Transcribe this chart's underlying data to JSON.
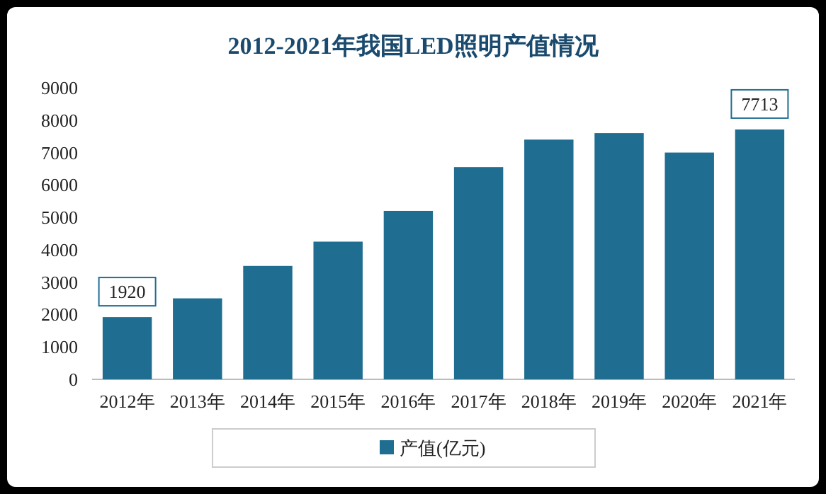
{
  "chart_data": {
    "type": "bar",
    "title": "2012-2021年我国LED照明产值情况",
    "categories": [
      "2012年",
      "2013年",
      "2014年",
      "2015年",
      "2016年",
      "2017年",
      "2018年",
      "2019年",
      "2020年",
      "2021年"
    ],
    "series": [
      {
        "name": "产值(亿元)",
        "color": "#1f6e91",
        "values": [
          1920,
          2500,
          3500,
          4250,
          5200,
          6550,
          7400,
          7600,
          7000,
          7713
        ],
        "value_labels": [
          "1920",
          null,
          null,
          null,
          null,
          null,
          null,
          null,
          null,
          "7713"
        ]
      }
    ],
    "ylim": [
      0,
      9000
    ],
    "yticks": [
      0,
      1000,
      2000,
      3000,
      4000,
      5000,
      6000,
      7000,
      8000,
      9000
    ],
    "grid": false,
    "legend": "bottom"
  }
}
